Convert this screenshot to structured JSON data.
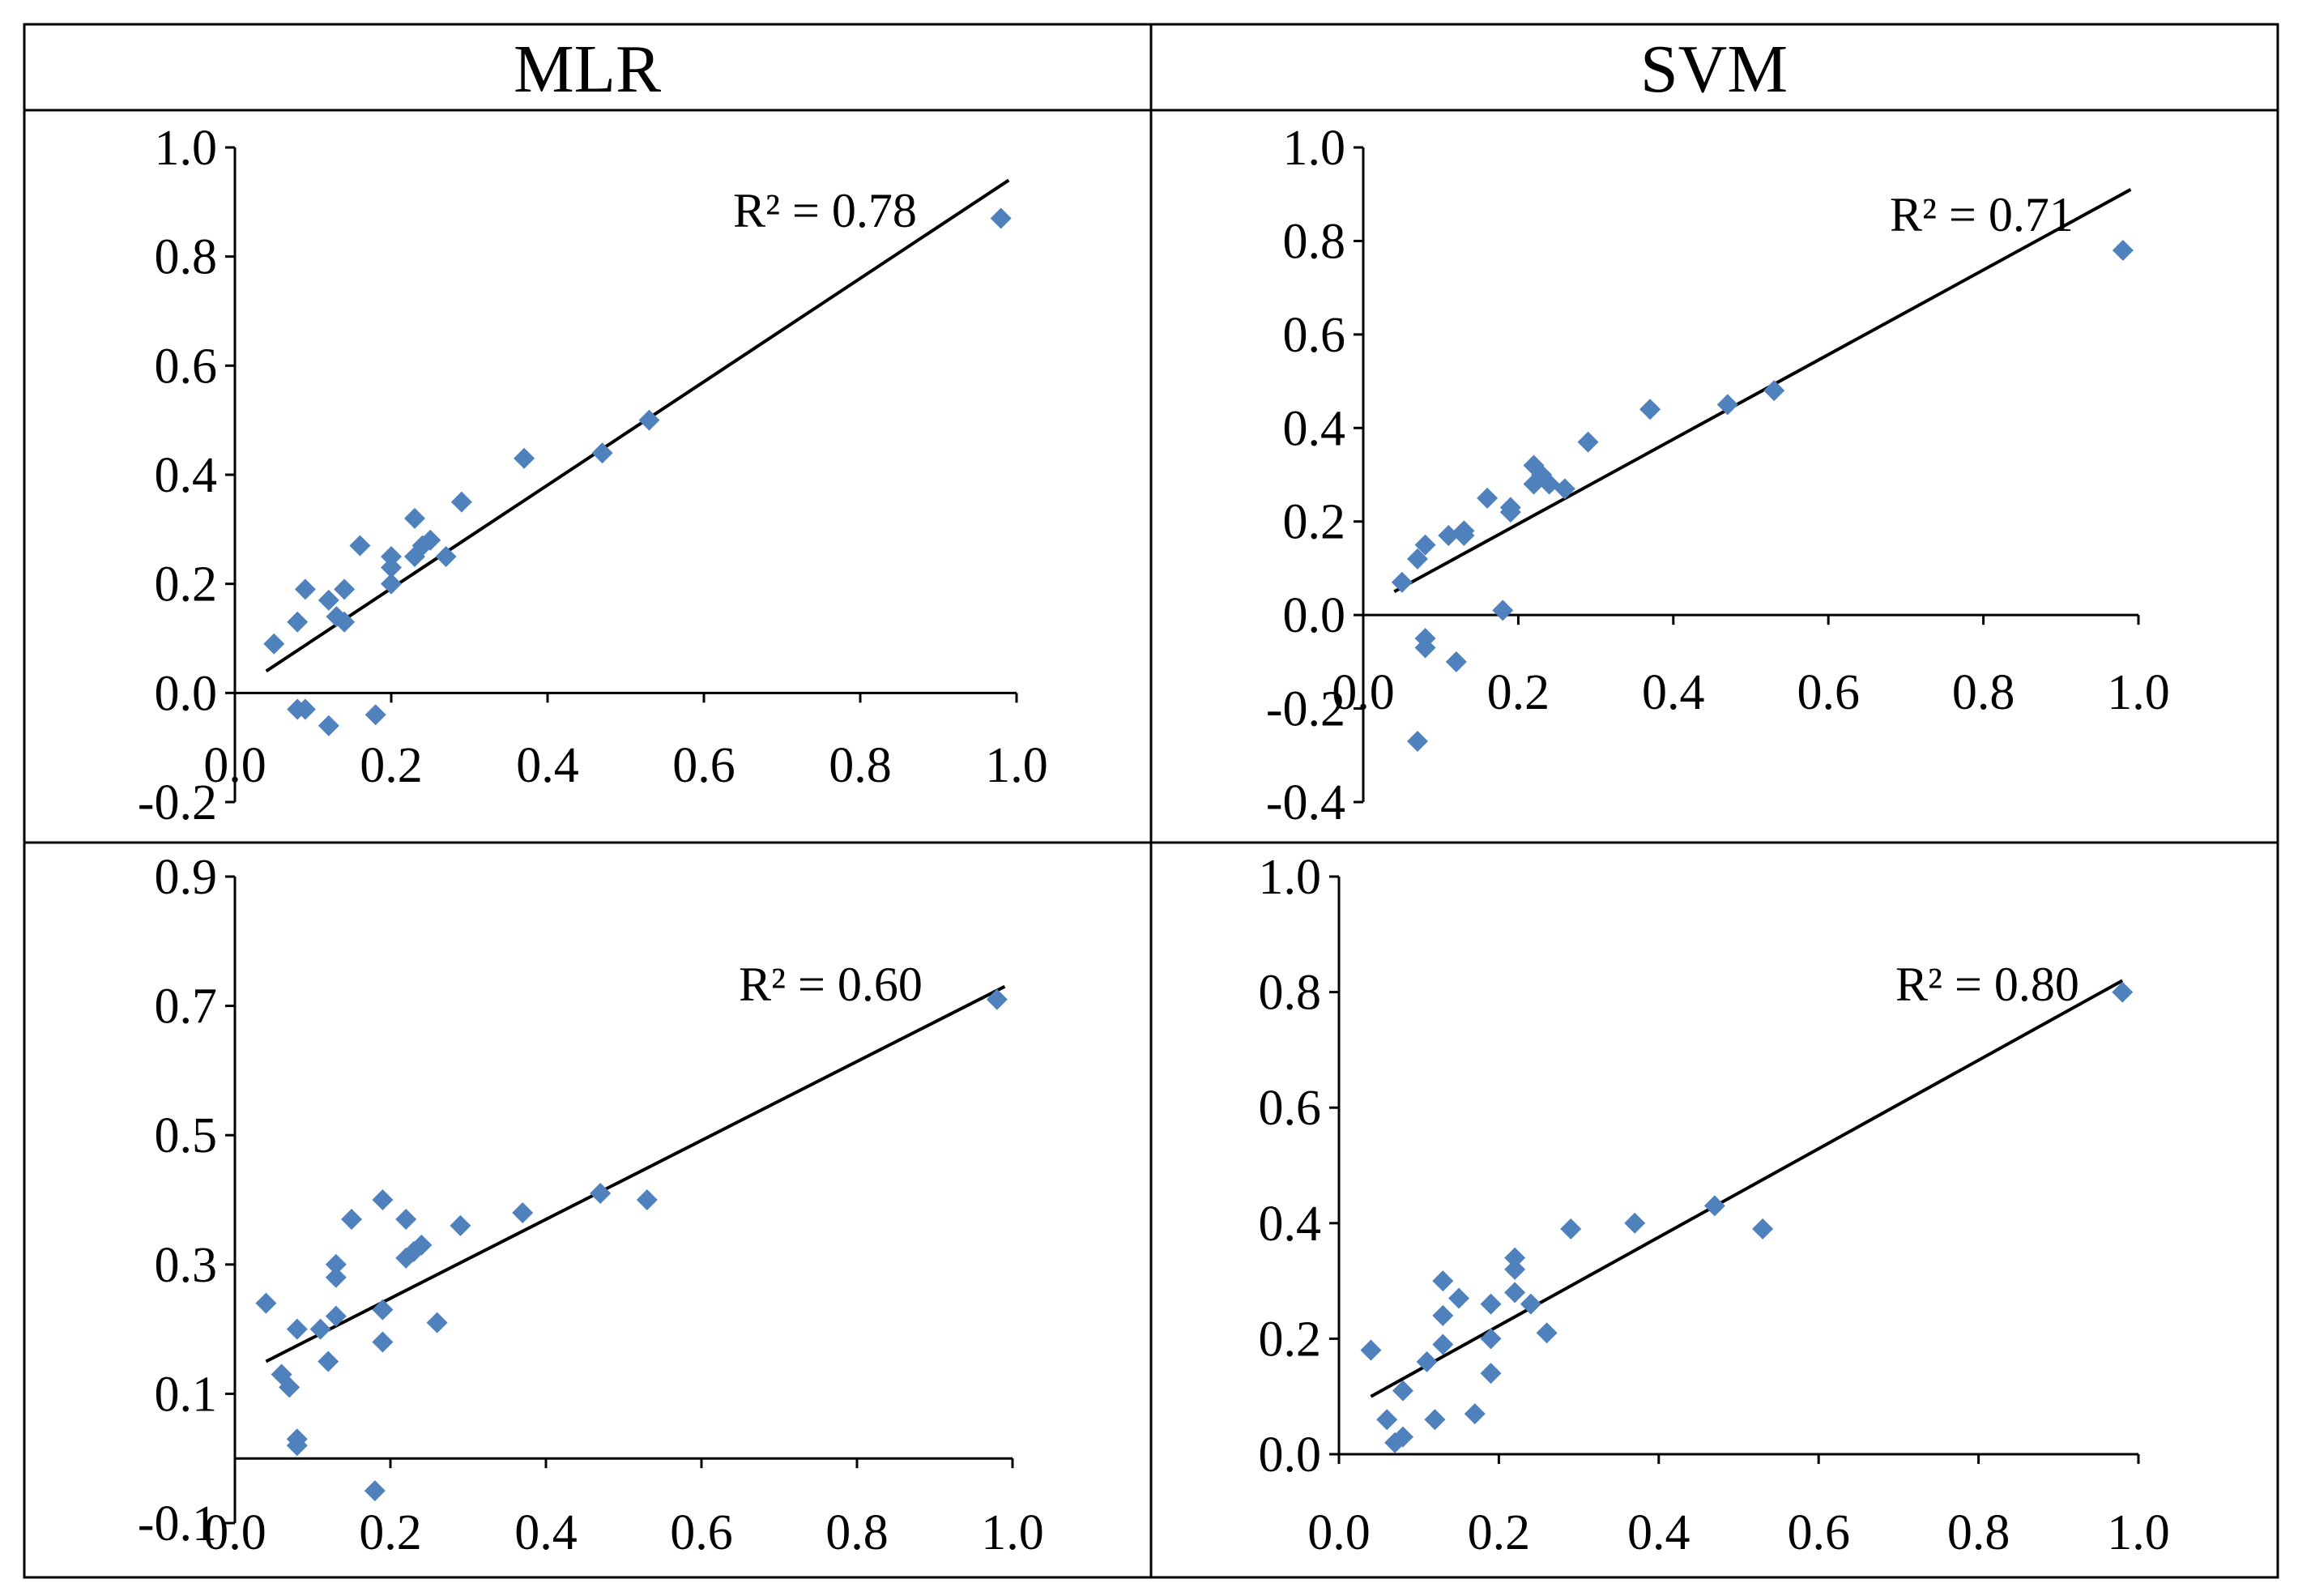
{
  "headers": {
    "left": "MLR",
    "right": "SVM"
  },
  "colors": {
    "marker": "#4F81BD",
    "line": "#000000",
    "frame": "#000000"
  },
  "chart_data": [
    {
      "type": "scatter",
      "panel": "top-left",
      "method": "MLR",
      "xlim": [
        0,
        1
      ],
      "ylim": [
        -0.2,
        1.0
      ],
      "x_ticks": [
        "0.0",
        "0.2",
        "0.4",
        "0.6",
        "0.8",
        "1.0"
      ],
      "y_ticks": [
        "-0.2",
        "0.0",
        "0.2",
        "0.4",
        "0.6",
        "0.8",
        "1.0"
      ],
      "r2_label": "R² = 0.78",
      "trendline": {
        "x": [
          0.04,
          0.99
        ],
        "y": [
          0.04,
          0.94
        ]
      },
      "points": [
        [
          0.05,
          0.09
        ],
        [
          0.08,
          0.13
        ],
        [
          0.09,
          0.19
        ],
        [
          0.12,
          0.17
        ],
        [
          0.13,
          0.14
        ],
        [
          0.14,
          0.19
        ],
        [
          0.14,
          0.13
        ],
        [
          0.16,
          0.27
        ],
        [
          0.2,
          0.25
        ],
        [
          0.2,
          0.23
        ],
        [
          0.2,
          0.2
        ],
        [
          0.23,
          0.32
        ],
        [
          0.23,
          0.25
        ],
        [
          0.24,
          0.27
        ],
        [
          0.25,
          0.28
        ],
        [
          0.27,
          0.25
        ],
        [
          0.29,
          0.35
        ],
        [
          0.37,
          0.43
        ],
        [
          0.47,
          0.44
        ],
        [
          0.53,
          0.5
        ],
        [
          0.98,
          0.87
        ],
        [
          0.08,
          -0.03
        ],
        [
          0.09,
          -0.03
        ],
        [
          0.12,
          -0.06
        ],
        [
          0.18,
          -0.04
        ]
      ]
    },
    {
      "type": "scatter",
      "panel": "top-right",
      "method": "SVM",
      "xlim": [
        0,
        1
      ],
      "ylim": [
        -0.4,
        1.0
      ],
      "x_ticks": [
        "0.0",
        "0.2",
        "0.4",
        "0.6",
        "0.8",
        "1.0"
      ],
      "y_ticks": [
        "-0.4",
        "-0.2",
        "0.0",
        "0.2",
        "0.4",
        "0.6",
        "0.8",
        "1.0"
      ],
      "r2_label": "R² = 0.71",
      "trendline": {
        "x": [
          0.04,
          0.99
        ],
        "y": [
          0.05,
          0.91
        ]
      },
      "points": [
        [
          0.05,
          0.07
        ],
        [
          0.07,
          0.12
        ],
        [
          0.08,
          0.15
        ],
        [
          0.11,
          0.17
        ],
        [
          0.13,
          0.18
        ],
        [
          0.13,
          0.17
        ],
        [
          0.16,
          0.25
        ],
        [
          0.19,
          0.23
        ],
        [
          0.19,
          0.22
        ],
        [
          0.22,
          0.32
        ],
        [
          0.22,
          0.28
        ],
        [
          0.23,
          0.3
        ],
        [
          0.24,
          0.28
        ],
        [
          0.26,
          0.27
        ],
        [
          0.29,
          0.37
        ],
        [
          0.37,
          0.44
        ],
        [
          0.47,
          0.45
        ],
        [
          0.53,
          0.48
        ],
        [
          0.98,
          0.78
        ],
        [
          0.18,
          0.01
        ],
        [
          0.08,
          -0.05
        ],
        [
          0.08,
          -0.07
        ],
        [
          0.12,
          -0.1
        ],
        [
          0.07,
          -0.27
        ]
      ]
    },
    {
      "type": "scatter",
      "panel": "bottom-left",
      "method": "MLR",
      "xlim": [
        0,
        1
      ],
      "ylim": [
        -0.1,
        0.9
      ],
      "x_ticks": [
        "0.0",
        "0.2",
        "0.4",
        "0.6",
        "0.8",
        "1.0"
      ],
      "y_ticks": [
        "-0.1",
        "0.1",
        "0.3",
        "0.5",
        "0.7",
        "0.9"
      ],
      "r2_label": "R² = 0.60",
      "trendline": {
        "x": [
          0.04,
          0.99
        ],
        "y": [
          0.15,
          0.73
        ]
      },
      "points": [
        [
          0.04,
          0.24
        ],
        [
          0.06,
          0.13
        ],
        [
          0.07,
          0.11
        ],
        [
          0.08,
          0.2
        ],
        [
          0.11,
          0.2
        ],
        [
          0.12,
          0.15
        ],
        [
          0.13,
          0.3
        ],
        [
          0.13,
          0.28
        ],
        [
          0.13,
          0.22
        ],
        [
          0.15,
          0.37
        ],
        [
          0.19,
          0.4
        ],
        [
          0.19,
          0.23
        ],
        [
          0.19,
          0.18
        ],
        [
          0.22,
          0.37
        ],
        [
          0.22,
          0.31
        ],
        [
          0.23,
          0.32
        ],
        [
          0.24,
          0.33
        ],
        [
          0.26,
          0.21
        ],
        [
          0.29,
          0.36
        ],
        [
          0.37,
          0.38
        ],
        [
          0.47,
          0.41
        ],
        [
          0.53,
          0.4
        ],
        [
          0.98,
          0.71
        ],
        [
          0.08,
          0.02
        ],
        [
          0.08,
          0.03
        ],
        [
          0.18,
          -0.05
        ]
      ]
    },
    {
      "type": "scatter",
      "panel": "bottom-right",
      "method": "SVM",
      "xlim": [
        0,
        1
      ],
      "ylim": [
        0.0,
        1.0
      ],
      "x_ticks": [
        "0.0",
        "0.2",
        "0.4",
        "0.6",
        "0.8",
        "1.0"
      ],
      "y_ticks": [
        "0.0",
        "0.2",
        "0.4",
        "0.6",
        "0.8",
        "1.0"
      ],
      "r2_label": "R² = 0.80",
      "trendline": {
        "x": [
          0.04,
          0.98
        ],
        "y": [
          0.1,
          0.82
        ]
      },
      "points": [
        [
          0.04,
          0.18
        ],
        [
          0.06,
          0.06
        ],
        [
          0.07,
          0.02
        ],
        [
          0.08,
          0.03
        ],
        [
          0.08,
          0.11
        ],
        [
          0.11,
          0.16
        ],
        [
          0.12,
          0.06
        ],
        [
          0.13,
          0.19
        ],
        [
          0.13,
          0.24
        ],
        [
          0.13,
          0.3
        ],
        [
          0.15,
          0.27
        ],
        [
          0.17,
          0.07
        ],
        [
          0.19,
          0.26
        ],
        [
          0.19,
          0.2
        ],
        [
          0.19,
          0.14
        ],
        [
          0.22,
          0.34
        ],
        [
          0.22,
          0.32
        ],
        [
          0.22,
          0.28
        ],
        [
          0.24,
          0.26
        ],
        [
          0.26,
          0.21
        ],
        [
          0.29,
          0.39
        ],
        [
          0.37,
          0.4
        ],
        [
          0.47,
          0.43
        ],
        [
          0.53,
          0.39
        ],
        [
          0.98,
          0.8
        ]
      ]
    }
  ]
}
